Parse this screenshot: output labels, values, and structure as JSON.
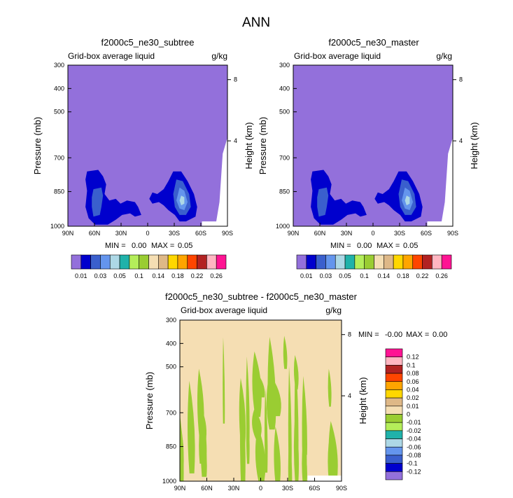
{
  "chart_data": [
    {
      "type": "heatmap",
      "panel": "left",
      "title": "f2000c5_ne30_subtree",
      "left_label": "Grid-box average liquid",
      "right_label": "g/kg",
      "ylabel": "Pressure (mb)",
      "ylabel_right": "Height (km)",
      "x_ticks": [
        "90N",
        "60N",
        "30N",
        "0",
        "30S",
        "60S",
        "90S"
      ],
      "y_ticks": [
        "300",
        "400",
        "500",
        "700",
        "850",
        "1000"
      ],
      "y_ticks_right": [
        "8",
        "4"
      ],
      "stats": {
        "min_label": "MIN =",
        "min": "0.00",
        "max_label": "MAX =",
        "max": "0.05"
      },
      "colorbar": {
        "orientation": "horizontal",
        "levels": [
          "0.01",
          "0.03",
          "0.05",
          "0.1",
          "0.14",
          "0.18",
          "0.22",
          "0.26"
        ],
        "colors": [
          "#9370db",
          "#0000cd",
          "#3a5fcd",
          "#6495ed",
          "#add8e6",
          "#20b2aa",
          "#b4ee5a",
          "#9acd32",
          "#f5deb3",
          "#deb887",
          "#ffd700",
          "#ffa500",
          "#ff4500",
          "#b22222",
          "#ffb6c1",
          "#ff1493"
        ]
      }
    },
    {
      "type": "heatmap",
      "panel": "right",
      "title": "f2000c5_ne30_master",
      "left_label": "Grid-box average liquid",
      "right_label": "g/kg",
      "ylabel": "Pressure (mb)",
      "ylabel_right": "Height (km)",
      "x_ticks": [
        "90N",
        "60N",
        "30N",
        "0",
        "30S",
        "60S",
        "90S"
      ],
      "y_ticks": [
        "300",
        "400",
        "500",
        "700",
        "850",
        "1000"
      ],
      "y_ticks_right": [
        "8",
        "4"
      ],
      "stats": {
        "min_label": "MIN =",
        "min": "0.00",
        "max_label": "MAX =",
        "max": "0.05"
      },
      "colorbar": {
        "orientation": "horizontal",
        "levels": [
          "0.01",
          "0.03",
          "0.05",
          "0.1",
          "0.14",
          "0.18",
          "0.22",
          "0.26"
        ],
        "colors": [
          "#9370db",
          "#0000cd",
          "#3a5fcd",
          "#6495ed",
          "#add8e6",
          "#20b2aa",
          "#b4ee5a",
          "#9acd32",
          "#f5deb3",
          "#deb887",
          "#ffd700",
          "#ffa500",
          "#ff4500",
          "#b22222",
          "#ffb6c1",
          "#ff1493"
        ]
      }
    },
    {
      "type": "heatmap",
      "panel": "difference",
      "title": "f2000c5_ne30_subtree - f2000c5_ne30_master",
      "left_label": "Grid-box average liquid",
      "right_label": "g/kg",
      "ylabel": "Pressure (mb)",
      "ylabel_right": "Height (km)",
      "x_ticks": [
        "90N",
        "60N",
        "30N",
        "0",
        "30S",
        "60S",
        "90S"
      ],
      "y_ticks": [
        "300",
        "400",
        "500",
        "700",
        "850",
        "1000"
      ],
      "y_ticks_right": [
        "8",
        "4"
      ],
      "stats": {
        "min_label": "MIN =",
        "min": "-0.00",
        "max_label": "MAX =",
        "max": "0.00"
      },
      "colorbar": {
        "orientation": "vertical",
        "levels": [
          "0.12",
          "0.1",
          "0.08",
          "0.06",
          "0.04",
          "0.02",
          "0.01",
          "0",
          "-0.01",
          "-0.02",
          "-0.04",
          "-0.06",
          "-0.08",
          "-0.1",
          "-0.12"
        ],
        "colors": [
          "#ff1493",
          "#ffb6c1",
          "#b22222",
          "#ff4500",
          "#ffa500",
          "#ffd700",
          "#deb887",
          "#f5deb3",
          "#9acd32",
          "#b4ee5a",
          "#20b2aa",
          "#add8e6",
          "#6495ed",
          "#3a5fcd",
          "#0000cd",
          "#9370db"
        ]
      }
    }
  ],
  "figure": {
    "title": "ANN"
  },
  "palette": {
    "background_field": "#9370db",
    "level1": "#0000cd",
    "level2": "#3a5fcd",
    "level3": "#6495ed",
    "level4": "#add8e6",
    "diff_positive": "#f5deb3",
    "diff_negative": "#9acd32",
    "missing": "#ffffff"
  }
}
